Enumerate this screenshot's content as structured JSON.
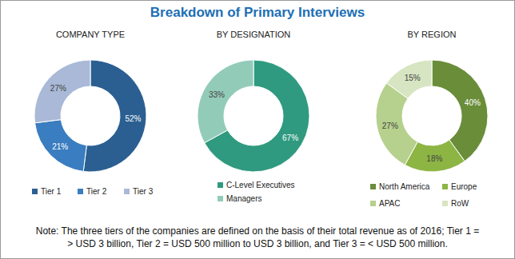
{
  "title": "Breakdown of Primary Interviews",
  "note": [
    "Note: The three tiers of the companies are defined on the basis of their total revenue as of 2016; Tier 1 =",
    "> USD 3 billion, Tier 2 = USD 500 million to USD 3 billion, and Tier 3 = < USD 500 million."
  ],
  "chart_data": [
    {
      "type": "donut",
      "title": "COMPANY TYPE",
      "categories": [
        "Tier 1",
        "Tier 2",
        "Tier 3"
      ],
      "values": [
        52,
        21,
        27
      ],
      "value_labels": [
        "52%",
        "21%",
        "27%"
      ],
      "colors": [
        "#2b5f91",
        "#3a7dc0",
        "#a9b9d7"
      ],
      "data_labels": true,
      "legend": "bottom"
    },
    {
      "type": "donut",
      "title": "BY DESIGNATION",
      "categories": [
        "C-Level Executives",
        "Managers"
      ],
      "values": [
        67,
        33
      ],
      "value_labels": [
        "67%",
        "33%"
      ],
      "colors": [
        "#2f9a80",
        "#93cbb9"
      ],
      "data_labels": true,
      "legend": "bottom"
    },
    {
      "type": "donut",
      "title": "BY REGION",
      "categories": [
        "North America",
        "Europe",
        "APAC",
        "RoW"
      ],
      "values": [
        40,
        18,
        27,
        15
      ],
      "value_labels": [
        "40%",
        "18%",
        "27%",
        "15%"
      ],
      "colors": [
        "#6a8d3a",
        "#8db544",
        "#b6d08d",
        "#d7e5c2"
      ],
      "data_labels": true,
      "legend": "bottom"
    }
  ]
}
